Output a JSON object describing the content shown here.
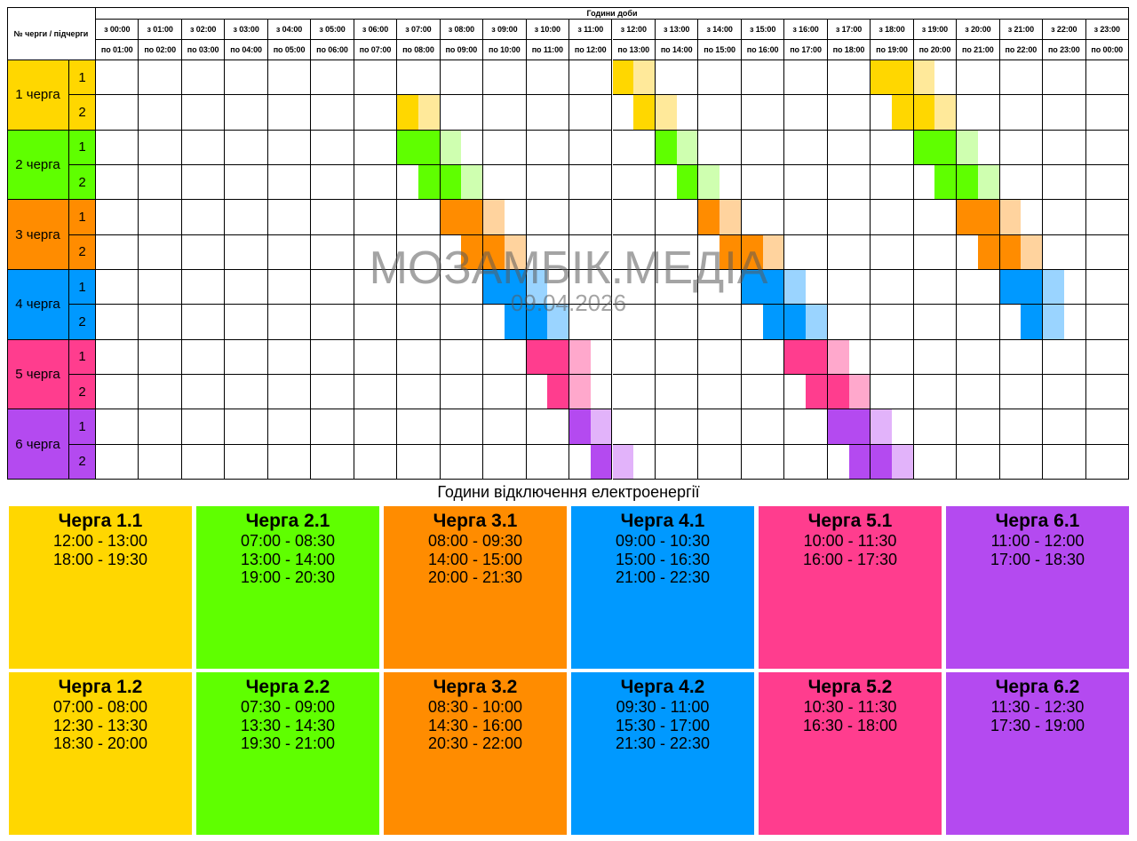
{
  "header": {
    "corner_label": "№ черги / підчерги",
    "title": "Години доби",
    "from": [
      "з 00:00",
      "з 01:00",
      "з 02:00",
      "з 03:00",
      "з 04:00",
      "з 05:00",
      "з 06:00",
      "з 07:00",
      "з 08:00",
      "з 09:00",
      "з 10:00",
      "з 11:00",
      "з 12:00",
      "з 13:00",
      "з 14:00",
      "з 15:00",
      "з 16:00",
      "з 17:00",
      "з 18:00",
      "з 19:00",
      "з 20:00",
      "з 21:00",
      "з 22:00",
      "з 23:00"
    ],
    "to": [
      "по 01:00",
      "по 02:00",
      "по 03:00",
      "по 04:00",
      "по 05:00",
      "по 06:00",
      "по 07:00",
      "по 08:00",
      "по 09:00",
      "по 10:00",
      "по 11:00",
      "по 12:00",
      "по 13:00",
      "по 14:00",
      "по 15:00",
      "по 16:00",
      "по 17:00",
      "по 18:00",
      "по 19:00",
      "по 20:00",
      "по 21:00",
      "по 22:00",
      "по 23:00",
      "по 00:00"
    ]
  },
  "queues": [
    {
      "label": "1 черга",
      "color": "#FFD700",
      "light": "#FFE99A",
      "subs": [
        {
          "label": "1",
          "outages": [
            [
              "12:00",
              "13:00"
            ],
            [
              "18:00",
              "19:30"
            ]
          ]
        },
        {
          "label": "2",
          "outages": [
            [
              "07:00",
              "08:00"
            ],
            [
              "12:30",
              "13:30"
            ],
            [
              "18:30",
              "20:00"
            ]
          ]
        }
      ]
    },
    {
      "label": "2 черга",
      "color": "#5FFF00",
      "light": "#CFFFB0",
      "subs": [
        {
          "label": "1",
          "outages": [
            [
              "07:00",
              "08:30"
            ],
            [
              "13:00",
              "14:00"
            ],
            [
              "19:00",
              "20:30"
            ]
          ]
        },
        {
          "label": "2",
          "outages": [
            [
              "07:30",
              "09:00"
            ],
            [
              "13:30",
              "14:30"
            ],
            [
              "19:30",
              "21:00"
            ]
          ]
        }
      ]
    },
    {
      "label": "3 черга",
      "color": "#FF8C00",
      "light": "#FFD39E",
      "subs": [
        {
          "label": "1",
          "outages": [
            [
              "08:00",
              "09:30"
            ],
            [
              "14:00",
              "15:00"
            ],
            [
              "20:00",
              "21:30"
            ]
          ]
        },
        {
          "label": "2",
          "outages": [
            [
              "08:30",
              "10:00"
            ],
            [
              "14:30",
              "16:00"
            ],
            [
              "20:30",
              "22:00"
            ]
          ]
        }
      ]
    },
    {
      "label": "4 черга",
      "color": "#0099FF",
      "light": "#9AD4FF",
      "subs": [
        {
          "label": "1",
          "outages": [
            [
              "09:00",
              "10:30"
            ],
            [
              "15:00",
              "16:30"
            ],
            [
              "21:00",
              "22:30"
            ]
          ]
        },
        {
          "label": "2",
          "outages": [
            [
              "09:30",
              "11:00"
            ],
            [
              "15:30",
              "17:00"
            ],
            [
              "21:30",
              "22:30"
            ]
          ]
        }
      ]
    },
    {
      "label": "5 черга",
      "color": "#FF3D8E",
      "light": "#FFA8CC",
      "subs": [
        {
          "label": "1",
          "outages": [
            [
              "10:00",
              "11:30"
            ],
            [
              "16:00",
              "17:30"
            ]
          ]
        },
        {
          "label": "2",
          "outages": [
            [
              "10:30",
              "11:30"
            ],
            [
              "16:30",
              "18:00"
            ]
          ]
        }
      ]
    },
    {
      "label": "6 черга",
      "color": "#B44AF0",
      "light": "#E2B3FA",
      "subs": [
        {
          "label": "1",
          "outages": [
            [
              "11:00",
              "12:00"
            ],
            [
              "17:00",
              "18:30"
            ]
          ]
        },
        {
          "label": "2",
          "outages": [
            [
              "11:30",
              "12:30"
            ],
            [
              "17:30",
              "19:00"
            ]
          ]
        }
      ]
    }
  ],
  "watermark": {
    "title": "МОЗАМБІК.МЕДІА",
    "date": "09.04.2026"
  },
  "legend_title": "Години відключення електроенергії",
  "cards": [
    {
      "title": "Черга 1.1",
      "lines": [
        "12:00 - 13:00",
        "18:00 - 19:30"
      ],
      "color": "#FFD700"
    },
    {
      "title": "Черга 2.1",
      "lines": [
        "07:00 - 08:30",
        "13:00 - 14:00",
        "19:00 - 20:30"
      ],
      "color": "#5FFF00"
    },
    {
      "title": "Черга 3.1",
      "lines": [
        "08:00 - 09:30",
        "14:00 - 15:00",
        "20:00 - 21:30"
      ],
      "color": "#FF8C00"
    },
    {
      "title": "Черга 4.1",
      "lines": [
        "09:00 - 10:30",
        "15:00 - 16:30",
        "21:00 - 22:30"
      ],
      "color": "#0099FF"
    },
    {
      "title": "Черга 5.1",
      "lines": [
        "10:00 - 11:30",
        "16:00 - 17:30"
      ],
      "color": "#FF3D8E"
    },
    {
      "title": "Черга 6.1",
      "lines": [
        "11:00 - 12:00",
        "17:00 - 18:30"
      ],
      "color": "#B44AF0"
    },
    {
      "title": "Черга 1.2",
      "lines": [
        "07:00 - 08:00",
        "12:30 - 13:30",
        "18:30 - 20:00"
      ],
      "color": "#FFD700"
    },
    {
      "title": "Черга 2.2",
      "lines": [
        "07:30 - 09:00",
        "13:30 - 14:30",
        "19:30 - 21:00"
      ],
      "color": "#5FFF00"
    },
    {
      "title": "Черга 3.2",
      "lines": [
        "08:30 - 10:00",
        "14:30 - 16:00",
        "20:30 - 22:00"
      ],
      "color": "#FF8C00"
    },
    {
      "title": "Черга 4.2",
      "lines": [
        "09:30 - 11:00",
        "15:30 - 17:00",
        "21:30 - 22:30"
      ],
      "color": "#0099FF"
    },
    {
      "title": "Черга 5.2",
      "lines": [
        "10:30 - 11:30",
        "16:30 - 18:00"
      ],
      "color": "#FF3D8E"
    },
    {
      "title": "Черга 6.2",
      "lines": [
        "11:30 - 12:30",
        "17:30 - 19:00"
      ],
      "color": "#B44AF0"
    }
  ]
}
